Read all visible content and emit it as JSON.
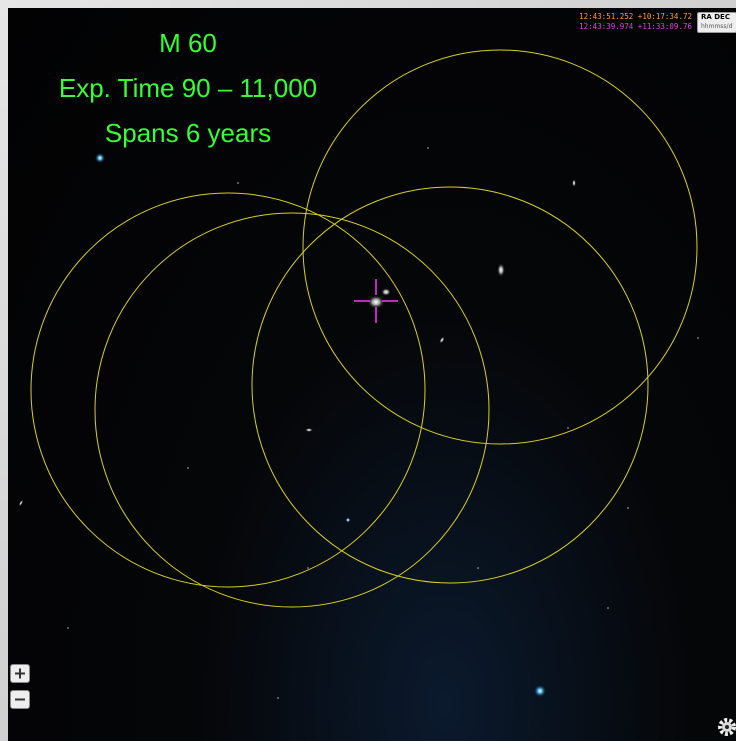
{
  "overlay": {
    "lines": [
      "M 60",
      "Exp. Time 90 – 11,000",
      "Spans 6 years"
    ]
  },
  "coordinates": {
    "mouse": "12:43:51.252 +10:17:34.72",
    "center": "12:43:39.974 +11:33:09.76"
  },
  "frame_selector": {
    "label": "RA DEC",
    "format": "hhmmss/d"
  }
}
